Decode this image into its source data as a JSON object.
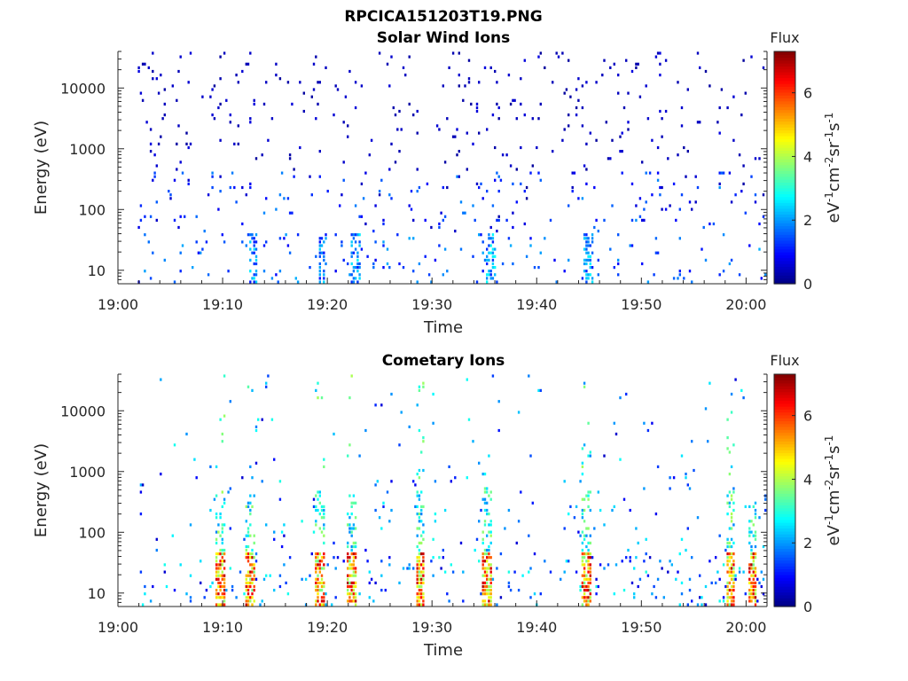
{
  "figure_title": "RPCICA151203T19.PNG",
  "chart_data": [
    {
      "type": "heatmap",
      "title": "Solar Wind Ions",
      "xlabel": "Time",
      "ylabel": "Energy (eV)",
      "x_ticks": [
        "19:00",
        "19:10",
        "19:20",
        "19:30",
        "19:40",
        "19:50",
        "20:00"
      ],
      "xlim": [
        "19:00",
        "20:02"
      ],
      "y_scale": "log",
      "y_ticks": [
        "10",
        "100",
        "1000",
        "10000"
      ],
      "ylim": [
        6,
        40000
      ],
      "colorbar": {
        "title": "Flux",
        "label": "eV-1cm-2sr-1s-1",
        "ticks": [
          "0",
          "2",
          "4",
          "6"
        ],
        "range": [
          0,
          7.3
        ],
        "colormap": "jet"
      },
      "max_flux_minutes": [
        19.5,
        22.6,
        35.5,
        44.8,
        12.8
      ],
      "typical_flux_low_energy": 1.5,
      "background_flux": 0.3
    },
    {
      "type": "heatmap",
      "title": "Cometary Ions",
      "xlabel": "Time",
      "ylabel": "Energy (eV)",
      "x_ticks": [
        "19:00",
        "19:10",
        "19:20",
        "19:30",
        "19:40",
        "19:50",
        "20:00"
      ],
      "xlim": [
        "19:00",
        "20:02"
      ],
      "y_scale": "log",
      "y_ticks": [
        "10",
        "100",
        "1000",
        "10000"
      ],
      "ylim": [
        6,
        40000
      ],
      "colorbar": {
        "title": "Flux",
        "label": "eV-1cm-2sr-1s-1",
        "ticks": [
          "0",
          "2",
          "4",
          "6"
        ],
        "range": [
          0,
          7.3
        ],
        "colormap": "jet"
      },
      "peak_flux_minutes": [
        9.7,
        12.6,
        19.2,
        22.3,
        28.8,
        35.2,
        44.7,
        58.4,
        60.5
      ],
      "peak_flux": 6.8,
      "background_flux": 0.3
    }
  ]
}
